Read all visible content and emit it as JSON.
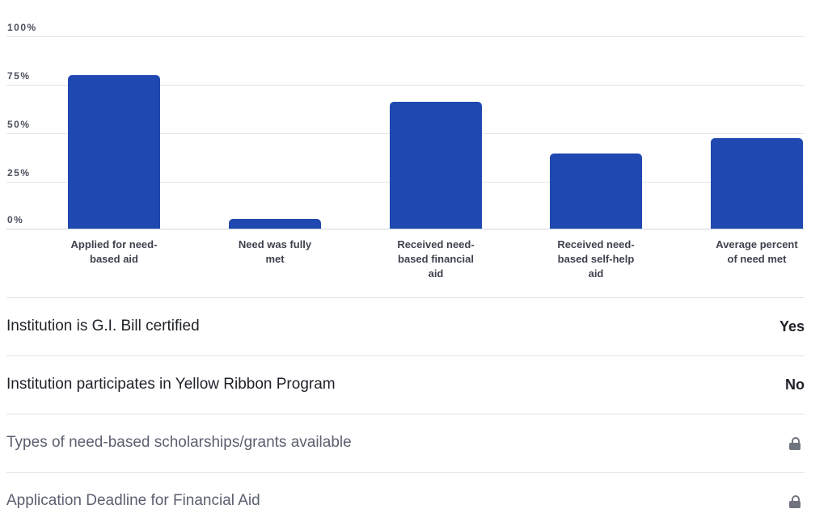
{
  "chart_data": {
    "type": "bar",
    "title": "",
    "xlabel": "",
    "ylabel": "",
    "ylim": [
      0,
      100
    ],
    "y_ticks": [
      "0%",
      "25%",
      "50%",
      "75%",
      "100%"
    ],
    "grid": true,
    "legend": null,
    "bar_color": "#1f49b0",
    "categories": [
      "Applied for need-based aid",
      "Need was fully met",
      "Received need-based financial aid",
      "Received need-based self-help aid",
      "Average percent of need met"
    ],
    "values": [
      80,
      5,
      66,
      39,
      47
    ]
  },
  "axis": {
    "ticks": {
      "t100": "100%",
      "t75": "75%",
      "t50": "50%",
      "t25": "25%",
      "t0": "0%"
    }
  },
  "categories": {
    "c0": [
      "Applied for need-",
      "based aid"
    ],
    "c1": [
      "Need was fully",
      "met"
    ],
    "c2": [
      "Received need-",
      "based financial",
      "aid"
    ],
    "c3": [
      "Received need-",
      "based self-help",
      "aid"
    ],
    "c4": [
      "Average percent",
      "of need met"
    ]
  },
  "rows": [
    {
      "label": "Institution is G.I. Bill certified",
      "value": "Yes",
      "locked": false
    },
    {
      "label": "Institution participates in Yellow Ribbon Program",
      "value": "No",
      "locked": false
    },
    {
      "label": "Types of need-based scholarships/grants available",
      "value": "",
      "locked": true,
      "icon": "lock-icon"
    },
    {
      "label": "Application Deadline for Financial Aid",
      "value": "",
      "locked": true,
      "icon": "lock-icon"
    }
  ]
}
